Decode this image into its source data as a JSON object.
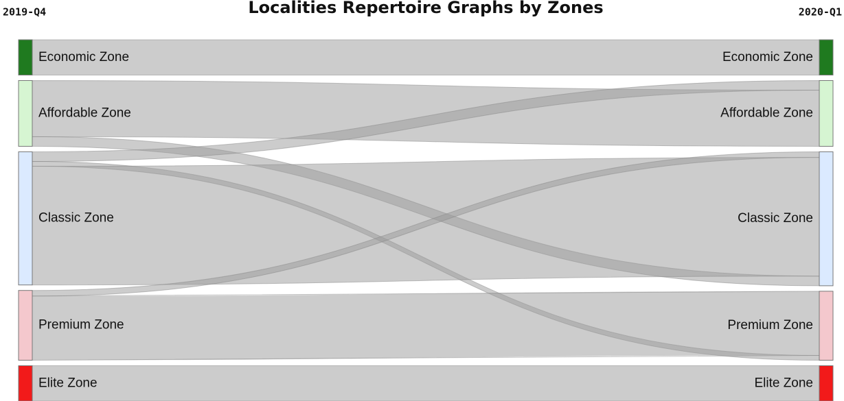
{
  "chart_data": {
    "type": "sankey",
    "title": "Localities Repertoire Graphs by Zones",
    "left_label": "2019-Q4",
    "right_label": "2020-Q1",
    "nodes": [
      "Economic Zone",
      "Affordable Zone",
      "Classic Zone",
      "Premium Zone",
      "Elite Zone"
    ],
    "right_nodes": [
      "Economic Zone",
      "Affordable Zone",
      "Classic Zone",
      "Premium Zone",
      "Elite Zone"
    ],
    "node_colors": [
      "#1f7a1f",
      "#d6f5d2",
      "#dbeaff",
      "#f4c8cd",
      "#f21a1a"
    ],
    "link_color": "#9a9a9a",
    "links": [
      {
        "source": 0,
        "target": 0,
        "value": 44
      },
      {
        "source": 1,
        "target": 1,
        "value": 70
      },
      {
        "source": 1,
        "target": 2,
        "value": 12
      },
      {
        "source": 2,
        "target": 1,
        "value": 12
      },
      {
        "source": 2,
        "target": 3,
        "value": 6
      },
      {
        "source": 2,
        "target": 2,
        "value": 148
      },
      {
        "source": 3,
        "target": 2,
        "value": 7
      },
      {
        "source": 3,
        "target": 3,
        "value": 80
      },
      {
        "source": 4,
        "target": 4,
        "value": 44
      }
    ]
  }
}
